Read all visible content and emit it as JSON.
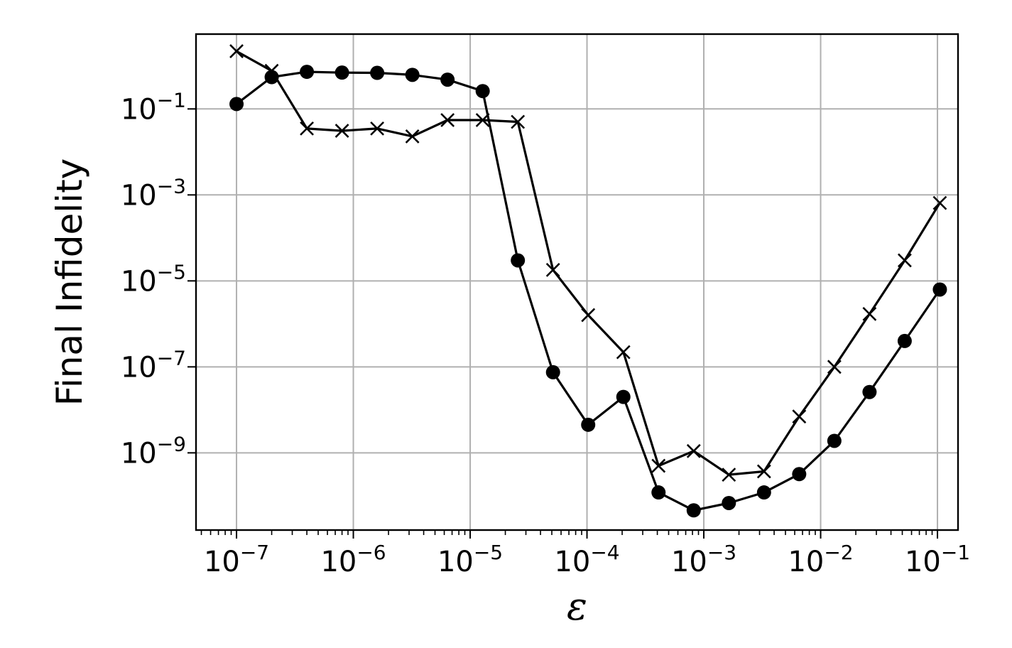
{
  "chart_data": {
    "type": "line",
    "xlabel": "ε",
    "ylabel": "Final Infidelity",
    "x_scale": "log",
    "y_scale": "log",
    "xlim": [
      4.5e-08,
      0.15
    ],
    "ylim": [
      1.6e-11,
      5.5
    ],
    "grid": true,
    "legend": "none",
    "x_tick_values": [
      1e-07,
      1e-06,
      1e-05,
      0.0001,
      0.001,
      0.01,
      0.1
    ],
    "x_tick_mantissas": [
      "10",
      "10",
      "10",
      "10",
      "10",
      "10",
      "10"
    ],
    "x_tick_exponents": [
      "−7",
      "−6",
      "−5",
      "−4",
      "−3",
      "−2",
      "−1"
    ],
    "y_tick_values": [
      1e-09,
      1e-07,
      1e-05,
      0.001,
      0.1
    ],
    "y_tick_mantissas": [
      "10",
      "10",
      "10",
      "10",
      "10"
    ],
    "y_tick_exponents": [
      "−9",
      "−7",
      "−5",
      "−3",
      "−1"
    ],
    "x": [
      1e-07,
      2e-07,
      4e-07,
      8e-07,
      1.6e-06,
      3.2e-06,
      6.4e-06,
      1.28e-05,
      2.56e-05,
      5.12e-05,
      0.0001024,
      0.0002048,
      0.0004096,
      0.0008192,
      0.0016384,
      0.0032768,
      0.0065536,
      0.0131072,
      0.0262144,
      0.0524288,
      0.1048576
    ],
    "series": [
      {
        "marker": "circle",
        "color": "#000000",
        "values": [
          0.13,
          0.55,
          0.73,
          0.7,
          0.69,
          0.62,
          0.48,
          0.26,
          3e-05,
          7.5e-08,
          4.5e-09,
          2e-08,
          1.2e-10,
          4.6e-11,
          6.8e-11,
          1.2e-10,
          3.2e-10,
          1.9e-09,
          2.6e-08,
          4e-07,
          6.3e-06
        ]
      },
      {
        "marker": "x",
        "color": "#000000",
        "values": [
          2.2,
          0.77,
          0.035,
          0.031,
          0.035,
          0.023,
          0.055,
          0.055,
          0.05,
          1.8e-05,
          1.6e-06,
          2.2e-07,
          5e-10,
          1.1e-09,
          3.1e-10,
          3.7e-10,
          7e-09,
          1e-07,
          1.7e-06,
          3e-05,
          0.00065
        ]
      }
    ]
  }
}
